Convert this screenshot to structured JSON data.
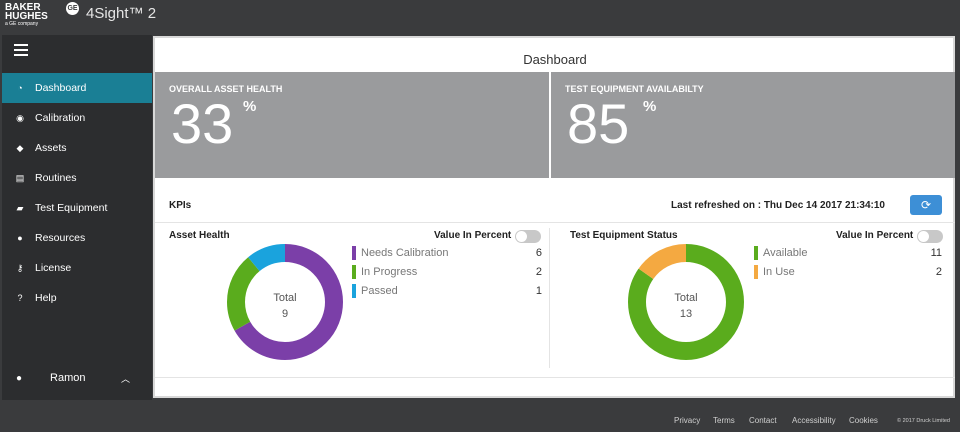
{
  "app": {
    "brand_line1": "BAKER",
    "brand_line2": "HUGHES",
    "brand_sub": "a GE company",
    "ge_logo": "GE",
    "title": "4Sight™ 2"
  },
  "sidebar": {
    "items": [
      {
        "label": "Dashboard",
        "icon": "dashboard-icon",
        "active": true
      },
      {
        "label": "Calibration",
        "icon": "calibration-icon"
      },
      {
        "label": "Assets",
        "icon": "tag-icon"
      },
      {
        "label": "Routines",
        "icon": "list-icon"
      },
      {
        "label": "Test Equipment",
        "icon": "briefcase-icon"
      },
      {
        "label": "Resources",
        "icon": "person-icon"
      },
      {
        "label": "License",
        "icon": "key-icon"
      },
      {
        "label": "Help",
        "icon": "help-icon"
      }
    ],
    "user": "Ramon"
  },
  "dashboard": {
    "title": "Dashboard",
    "overall_health_label": "OVERALL ASSET HEALTH",
    "overall_health_value": "33",
    "availability_label": "TEST EQUIPMENT AVAILABILTY",
    "availability_value": "85",
    "percent_sign": "%",
    "kpis_label": "KPIs",
    "last_refreshed": "Last refreshed on : Thu Dec 14 2017 21:34:10"
  },
  "asset_health": {
    "title": "Asset Health",
    "value_in_percent_label": "Value In Percent",
    "total_label": "Total",
    "total": "9",
    "items": [
      {
        "label": "Needs Calibration",
        "value": "6",
        "color": "#7b3fa8"
      },
      {
        "label": "In Progress",
        "value": "2",
        "color": "#5aac1d"
      },
      {
        "label": "Passed",
        "value": "1",
        "color": "#1aa3dd"
      }
    ]
  },
  "test_equipment_status": {
    "title": "Test Equipment Status",
    "value_in_percent_label": "Value In Percent",
    "total_label": "Total",
    "total": "13",
    "items": [
      {
        "label": "Available",
        "value": "11",
        "color": "#5aac1d"
      },
      {
        "label": "In Use",
        "value": "2",
        "color": "#f4a941"
      }
    ]
  },
  "footer": {
    "links": [
      "Privacy",
      "Terms",
      "Contact",
      "Accessibility",
      "Cookies"
    ],
    "copyright": "© 2017 Druck Limited"
  }
}
